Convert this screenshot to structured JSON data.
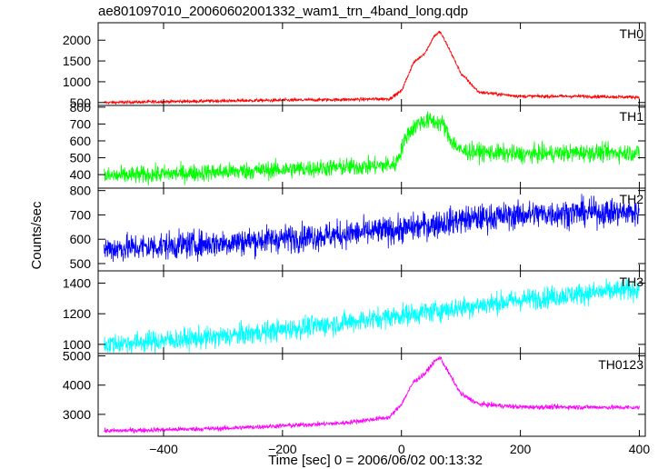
{
  "chart_data": {
    "type": "line",
    "title": "ae801097010_20060602001332_wam1_trn_4band_long.qdp",
    "ylabel": "Counts/sec",
    "xlabel": "Time [sec] 0 = 2006/06/02 00:13:32",
    "xlim": [
      -510,
      410
    ],
    "x_ticks": [
      "−400",
      "−200",
      "0",
      "200",
      "400"
    ],
    "x_tick_values": [
      -400,
      -200,
      0,
      200,
      400
    ],
    "time_resolution_sec": 0.5,
    "grid": false,
    "panels": [
      {
        "name": "TH0",
        "color": "#ff0000",
        "ylim": [
          430,
          2420
        ],
        "y_ticks": [
          "500",
          "1000",
          "1500",
          "2000"
        ],
        "y_tick_values": [
          500,
          1000,
          1500,
          2000
        ],
        "profile": {
          "x": [
            -500,
            -300,
            -100,
            -20,
            0,
            20,
            40,
            55,
            65,
            80,
            100,
            130,
            200,
            300,
            400
          ],
          "y": [
            500,
            540,
            570,
            590,
            780,
            1450,
            1700,
            2100,
            2200,
            1800,
            1200,
            750,
            650,
            650,
            630
          ]
        },
        "noise": 20
      },
      {
        "name": "TH1",
        "color": "#00ff00",
        "ylim": [
          320,
          810
        ],
        "y_ticks": [
          "400",
          "500",
          "600",
          "700",
          "800"
        ],
        "y_tick_values": [
          400,
          500,
          600,
          700,
          800
        ],
        "profile": {
          "x": [
            -500,
            -200,
            -50,
            -10,
            10,
            30,
            50,
            70,
            80,
            100,
            200,
            300,
            400
          ],
          "y": [
            390,
            430,
            450,
            460,
            640,
            710,
            720,
            700,
            620,
            540,
            520,
            530,
            530
          ],
          "__note": ""
        },
        "noise": 26
      },
      {
        "name": "TH2",
        "color": "#0000ff",
        "ylim": [
          470,
          810
        ],
        "y_ticks": [
          "500",
          "600",
          "700",
          "800"
        ],
        "y_tick_values": [
          500,
          600,
          700,
          800
        ],
        "profile": {
          "x": [
            -500,
            -300,
            -100,
            0,
            100,
            200,
            300,
            400
          ],
          "y": [
            560,
            585,
            620,
            640,
            680,
            700,
            710,
            710
          ]
        },
        "noise": 28
      },
      {
        "name": "TH3",
        "color": "#00ffff",
        "ylim": [
          940,
          1480
        ],
        "y_ticks": [
          "1000",
          "1200",
          "1400"
        ],
        "y_tick_values": [
          1000,
          1200,
          1400
        ],
        "profile": {
          "x": [
            -500,
            -300,
            -100,
            0,
            100,
            200,
            300,
            400
          ],
          "y": [
            1000,
            1050,
            1140,
            1190,
            1240,
            1290,
            1330,
            1360
          ]
        },
        "noise": 35
      },
      {
        "name": "TH0123",
        "color": "#ff00ff",
        "ylim": [
          2250,
          5080
        ],
        "y_ticks": [
          "3000",
          "4000",
          "5000"
        ],
        "y_tick_values": [
          3000,
          4000,
          5000
        ],
        "profile": {
          "x": [
            -500,
            -300,
            -100,
            -20,
            0,
            20,
            40,
            55,
            65,
            80,
            100,
            130,
            200,
            300,
            400
          ],
          "y": [
            2430,
            2520,
            2700,
            2900,
            3350,
            4100,
            4400,
            4800,
            4950,
            4400,
            3700,
            3350,
            3250,
            3250,
            3230
          ]
        },
        "noise": 40
      }
    ]
  }
}
